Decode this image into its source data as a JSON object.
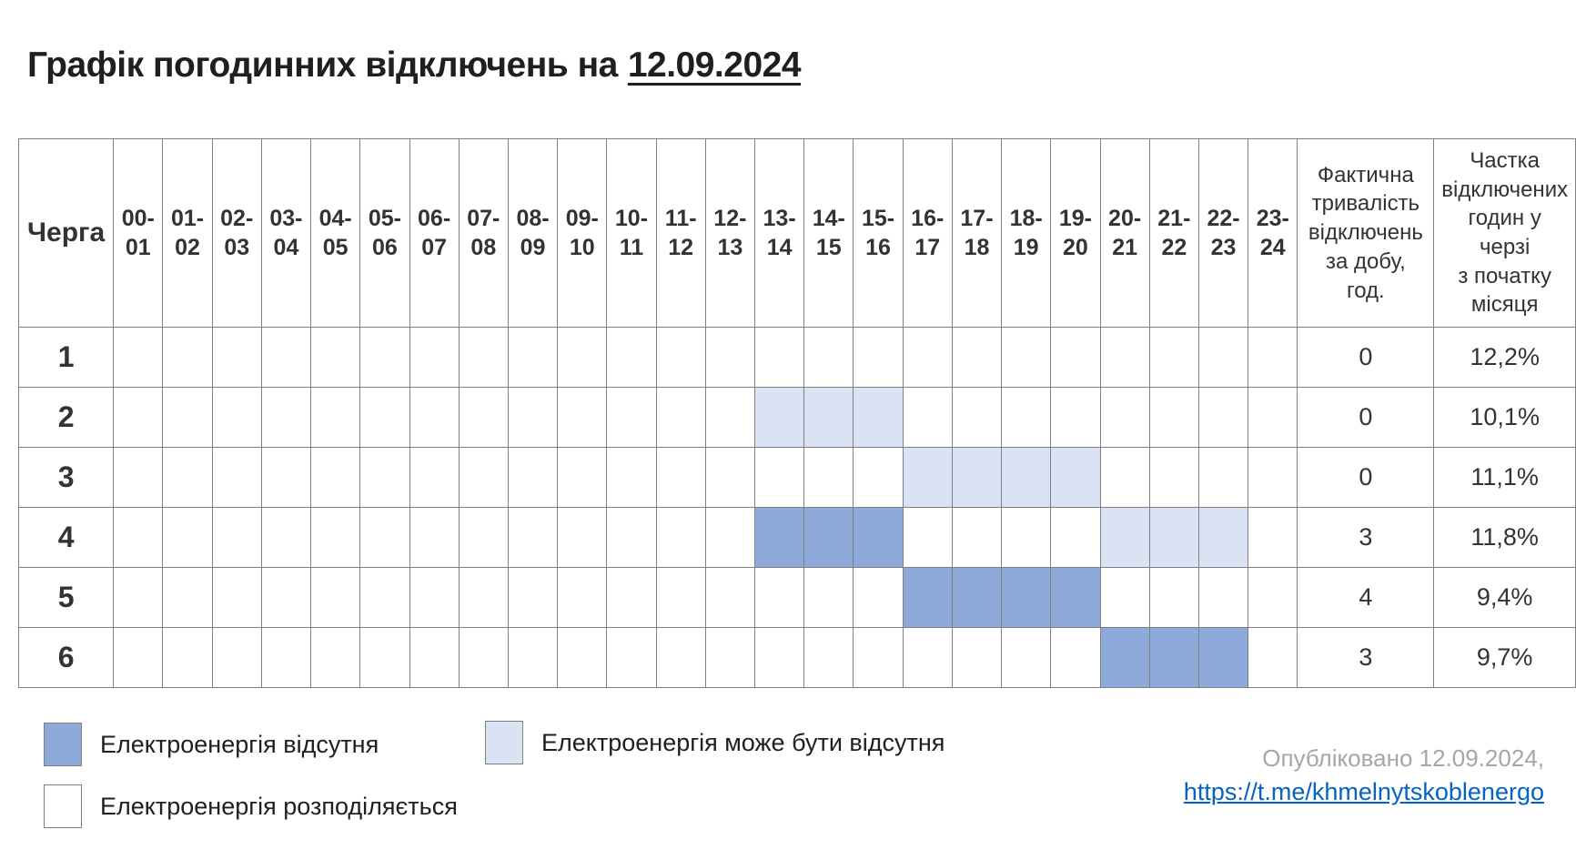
{
  "title": {
    "prefix": "Графік погодинних відключень на",
    "date": "12.09.2024"
  },
  "table": {
    "queue_header": "Черга",
    "hour_columns": [
      "00-01",
      "01-02",
      "02-03",
      "03-04",
      "04-05",
      "05-06",
      "06-07",
      "07-08",
      "08-09",
      "09-10",
      "10-11",
      "11-12",
      "12-13",
      "13-14",
      "14-15",
      "15-16",
      "16-17",
      "17-18",
      "18-19",
      "19-20",
      "20-21",
      "21-22",
      "22-23",
      "23-24"
    ],
    "duration_header": "Фактична\nтривалість\nвідключень\nза добу,\nгод.",
    "share_header": "Частка\nвідключених\nгодин у\nчерзі\nз початку\nмісяця",
    "rows": [
      {
        "queue": "1",
        "states": [
          0,
          0,
          0,
          0,
          0,
          0,
          0,
          0,
          0,
          0,
          0,
          0,
          0,
          0,
          0,
          0,
          0,
          0,
          0,
          0,
          0,
          0,
          0,
          0
        ],
        "duration": "0",
        "share": "12,2%"
      },
      {
        "queue": "2",
        "states": [
          0,
          0,
          0,
          0,
          0,
          0,
          0,
          0,
          0,
          0,
          0,
          0,
          0,
          1,
          1,
          1,
          0,
          0,
          0,
          0,
          0,
          0,
          0,
          0
        ],
        "duration": "0",
        "share": "10,1%"
      },
      {
        "queue": "3",
        "states": [
          0,
          0,
          0,
          0,
          0,
          0,
          0,
          0,
          0,
          0,
          0,
          0,
          0,
          0,
          0,
          0,
          1,
          1,
          1,
          1,
          0,
          0,
          0,
          0
        ],
        "duration": "0",
        "share": "11,1%"
      },
      {
        "queue": "4",
        "states": [
          0,
          0,
          0,
          0,
          0,
          0,
          0,
          0,
          0,
          0,
          0,
          0,
          0,
          2,
          2,
          2,
          0,
          0,
          0,
          0,
          1,
          1,
          1,
          0
        ],
        "duration": "3",
        "share": "11,8%"
      },
      {
        "queue": "5",
        "states": [
          0,
          0,
          0,
          0,
          0,
          0,
          0,
          0,
          0,
          0,
          0,
          0,
          0,
          0,
          0,
          0,
          2,
          2,
          2,
          2,
          0,
          0,
          0,
          0
        ],
        "duration": "4",
        "share": "9,4%"
      },
      {
        "queue": "6",
        "states": [
          0,
          0,
          0,
          0,
          0,
          0,
          0,
          0,
          0,
          0,
          0,
          0,
          0,
          0,
          0,
          0,
          0,
          0,
          0,
          0,
          2,
          2,
          2,
          0
        ],
        "duration": "3",
        "share": "9,7%"
      }
    ],
    "state_meaning": {
      "0": "distributed",
      "1": "maybe",
      "2": "off"
    }
  },
  "legend": {
    "items": [
      {
        "state": "off",
        "label": "Електроенергія відсутня"
      },
      {
        "state": "maybe",
        "label": "Електроенергія може бути відсутня"
      },
      {
        "state": "distributed",
        "label": "Електроенергія розподіляється"
      }
    ]
  },
  "colors": {
    "off": "#8EAADB",
    "maybe": "#DAE3F3",
    "distributed": "#FFFFFF",
    "grid": "#7F7F7F",
    "link_blue": "#0563C1",
    "published_gray": "#A6A6A6"
  },
  "footer": {
    "published": "Опубліковано 12.09.2024,",
    "link": "https://t.me/khmelnytskoblenergo"
  }
}
